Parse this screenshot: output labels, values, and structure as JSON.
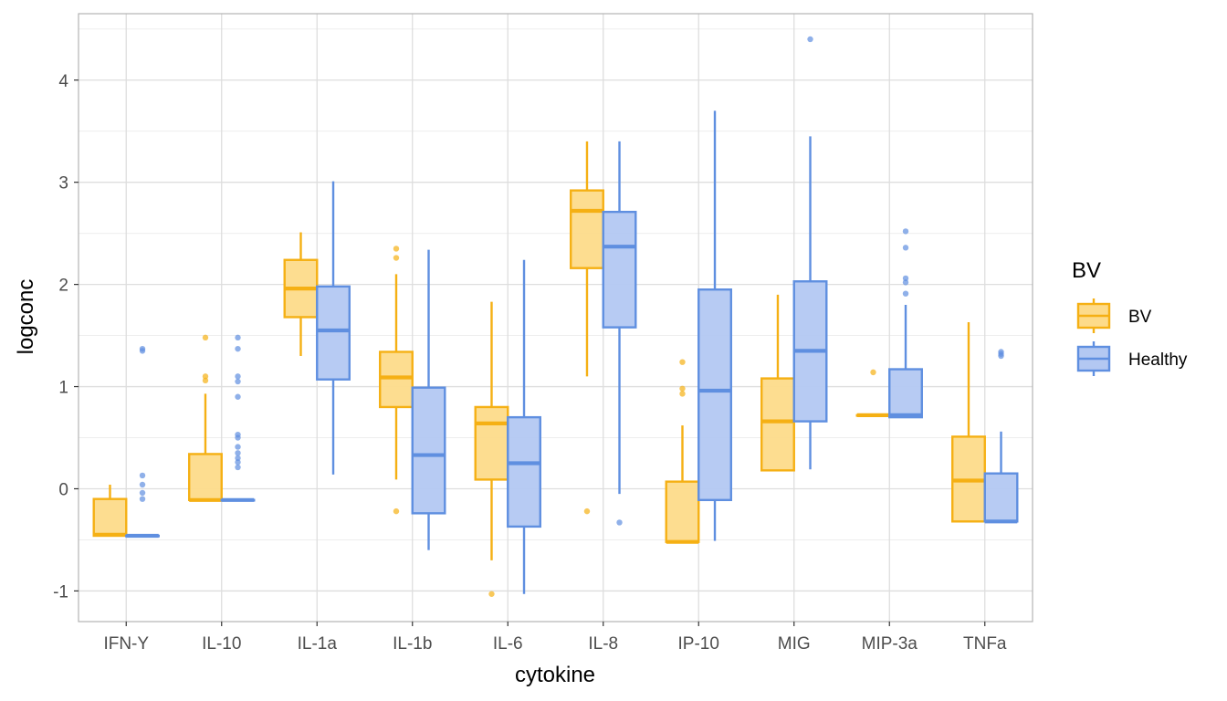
{
  "chart_data": {
    "type": "box",
    "xlabel": "cytokine",
    "ylabel": "logconc",
    "ylim": [
      -1.3,
      4.65
    ],
    "yticks": [
      -1,
      0,
      1,
      2,
      3,
      4
    ],
    "grid": true,
    "legend": {
      "title": "BV",
      "placement": "right",
      "entries": [
        "BV",
        "Healthy"
      ]
    },
    "colors": {
      "BV": {
        "stroke": "#F5B014",
        "fill": "#FDDB8A"
      },
      "Healthy": {
        "stroke": "#5F8FE0",
        "fill": "#B3C8F2"
      }
    },
    "categories": [
      "IFN-Y",
      "IL-10",
      "IL-1a",
      "IL-1b",
      "IL-6",
      "IL-8",
      "IP-10",
      "MIG",
      "MIP-3a",
      "TNFa"
    ],
    "series": [
      {
        "name": "BV",
        "boxes": [
          {
            "min": -0.46,
            "q1": -0.46,
            "median": -0.45,
            "q3": -0.1,
            "max": 0.04,
            "outliers": []
          },
          {
            "min": -0.11,
            "q1": -0.11,
            "median": -0.11,
            "q3": 0.34,
            "max": 0.93,
            "outliers": [
              1.06,
              1.1,
              1.48
            ]
          },
          {
            "min": 1.3,
            "q1": 1.68,
            "median": 1.96,
            "q3": 2.24,
            "max": 2.51,
            "outliers": []
          },
          {
            "min": 0.09,
            "q1": 0.8,
            "median": 1.09,
            "q3": 1.34,
            "max": 2.1,
            "outliers": [
              -0.22,
              2.26,
              2.35
            ]
          },
          {
            "min": -0.7,
            "q1": 0.09,
            "median": 0.64,
            "q3": 0.8,
            "max": 1.83,
            "outliers": [
              -1.03
            ]
          },
          {
            "min": 1.1,
            "q1": 2.16,
            "median": 2.72,
            "q3": 2.92,
            "max": 3.4,
            "outliers": [
              -0.22
            ]
          },
          {
            "min": -0.52,
            "q1": -0.52,
            "median": -0.52,
            "q3": 0.07,
            "max": 0.62,
            "outliers": [
              0.93,
              0.98,
              1.24
            ]
          },
          {
            "min": 0.18,
            "q1": 0.18,
            "median": 0.66,
            "q3": 1.08,
            "max": 1.9,
            "outliers": []
          },
          {
            "min": 0.72,
            "q1": 0.72,
            "median": 0.72,
            "q3": 0.72,
            "max": 0.72,
            "outliers": [
              1.14
            ]
          },
          {
            "min": -0.32,
            "q1": -0.32,
            "median": 0.08,
            "q3": 0.51,
            "max": 1.63,
            "outliers": []
          }
        ]
      },
      {
        "name": "Healthy",
        "boxes": [
          {
            "min": -0.46,
            "q1": -0.46,
            "median": -0.46,
            "q3": -0.46,
            "max": -0.46,
            "outliers": [
              -0.1,
              -0.04,
              0.04,
              0.13,
              1.35,
              1.37
            ]
          },
          {
            "min": -0.11,
            "q1": -0.11,
            "median": -0.11,
            "q3": -0.11,
            "max": -0.11,
            "outliers": [
              0.21,
              0.26,
              0.3,
              0.35,
              0.41,
              0.5,
              0.53,
              0.9,
              1.05,
              1.1,
              1.37,
              1.48
            ]
          },
          {
            "min": 0.14,
            "q1": 1.07,
            "median": 1.55,
            "q3": 1.98,
            "max": 3.01,
            "outliers": []
          },
          {
            "min": -0.6,
            "q1": -0.24,
            "median": 0.33,
            "q3": 0.99,
            "max": 2.34,
            "outliers": []
          },
          {
            "min": -1.03,
            "q1": -0.37,
            "median": 0.25,
            "q3": 0.7,
            "max": 2.24,
            "outliers": []
          },
          {
            "min": -0.05,
            "q1": 1.58,
            "median": 2.37,
            "q3": 2.71,
            "max": 3.4,
            "outliers": [
              -0.33
            ]
          },
          {
            "min": -0.51,
            "q1": -0.11,
            "median": 0.96,
            "q3": 1.95,
            "max": 3.7,
            "outliers": []
          },
          {
            "min": 0.19,
            "q1": 0.66,
            "median": 1.35,
            "q3": 2.03,
            "max": 3.45,
            "outliers": [
              4.4
            ]
          },
          {
            "min": 0.7,
            "q1": 0.7,
            "median": 0.72,
            "q3": 1.17,
            "max": 1.8,
            "outliers": [
              1.91,
              2.02,
              2.06,
              2.36,
              2.52
            ]
          },
          {
            "min": -0.32,
            "q1": -0.32,
            "median": -0.32,
            "q3": 0.15,
            "max": 0.56,
            "outliers": [
              1.3,
              1.32,
              1.34
            ]
          }
        ]
      }
    ]
  }
}
